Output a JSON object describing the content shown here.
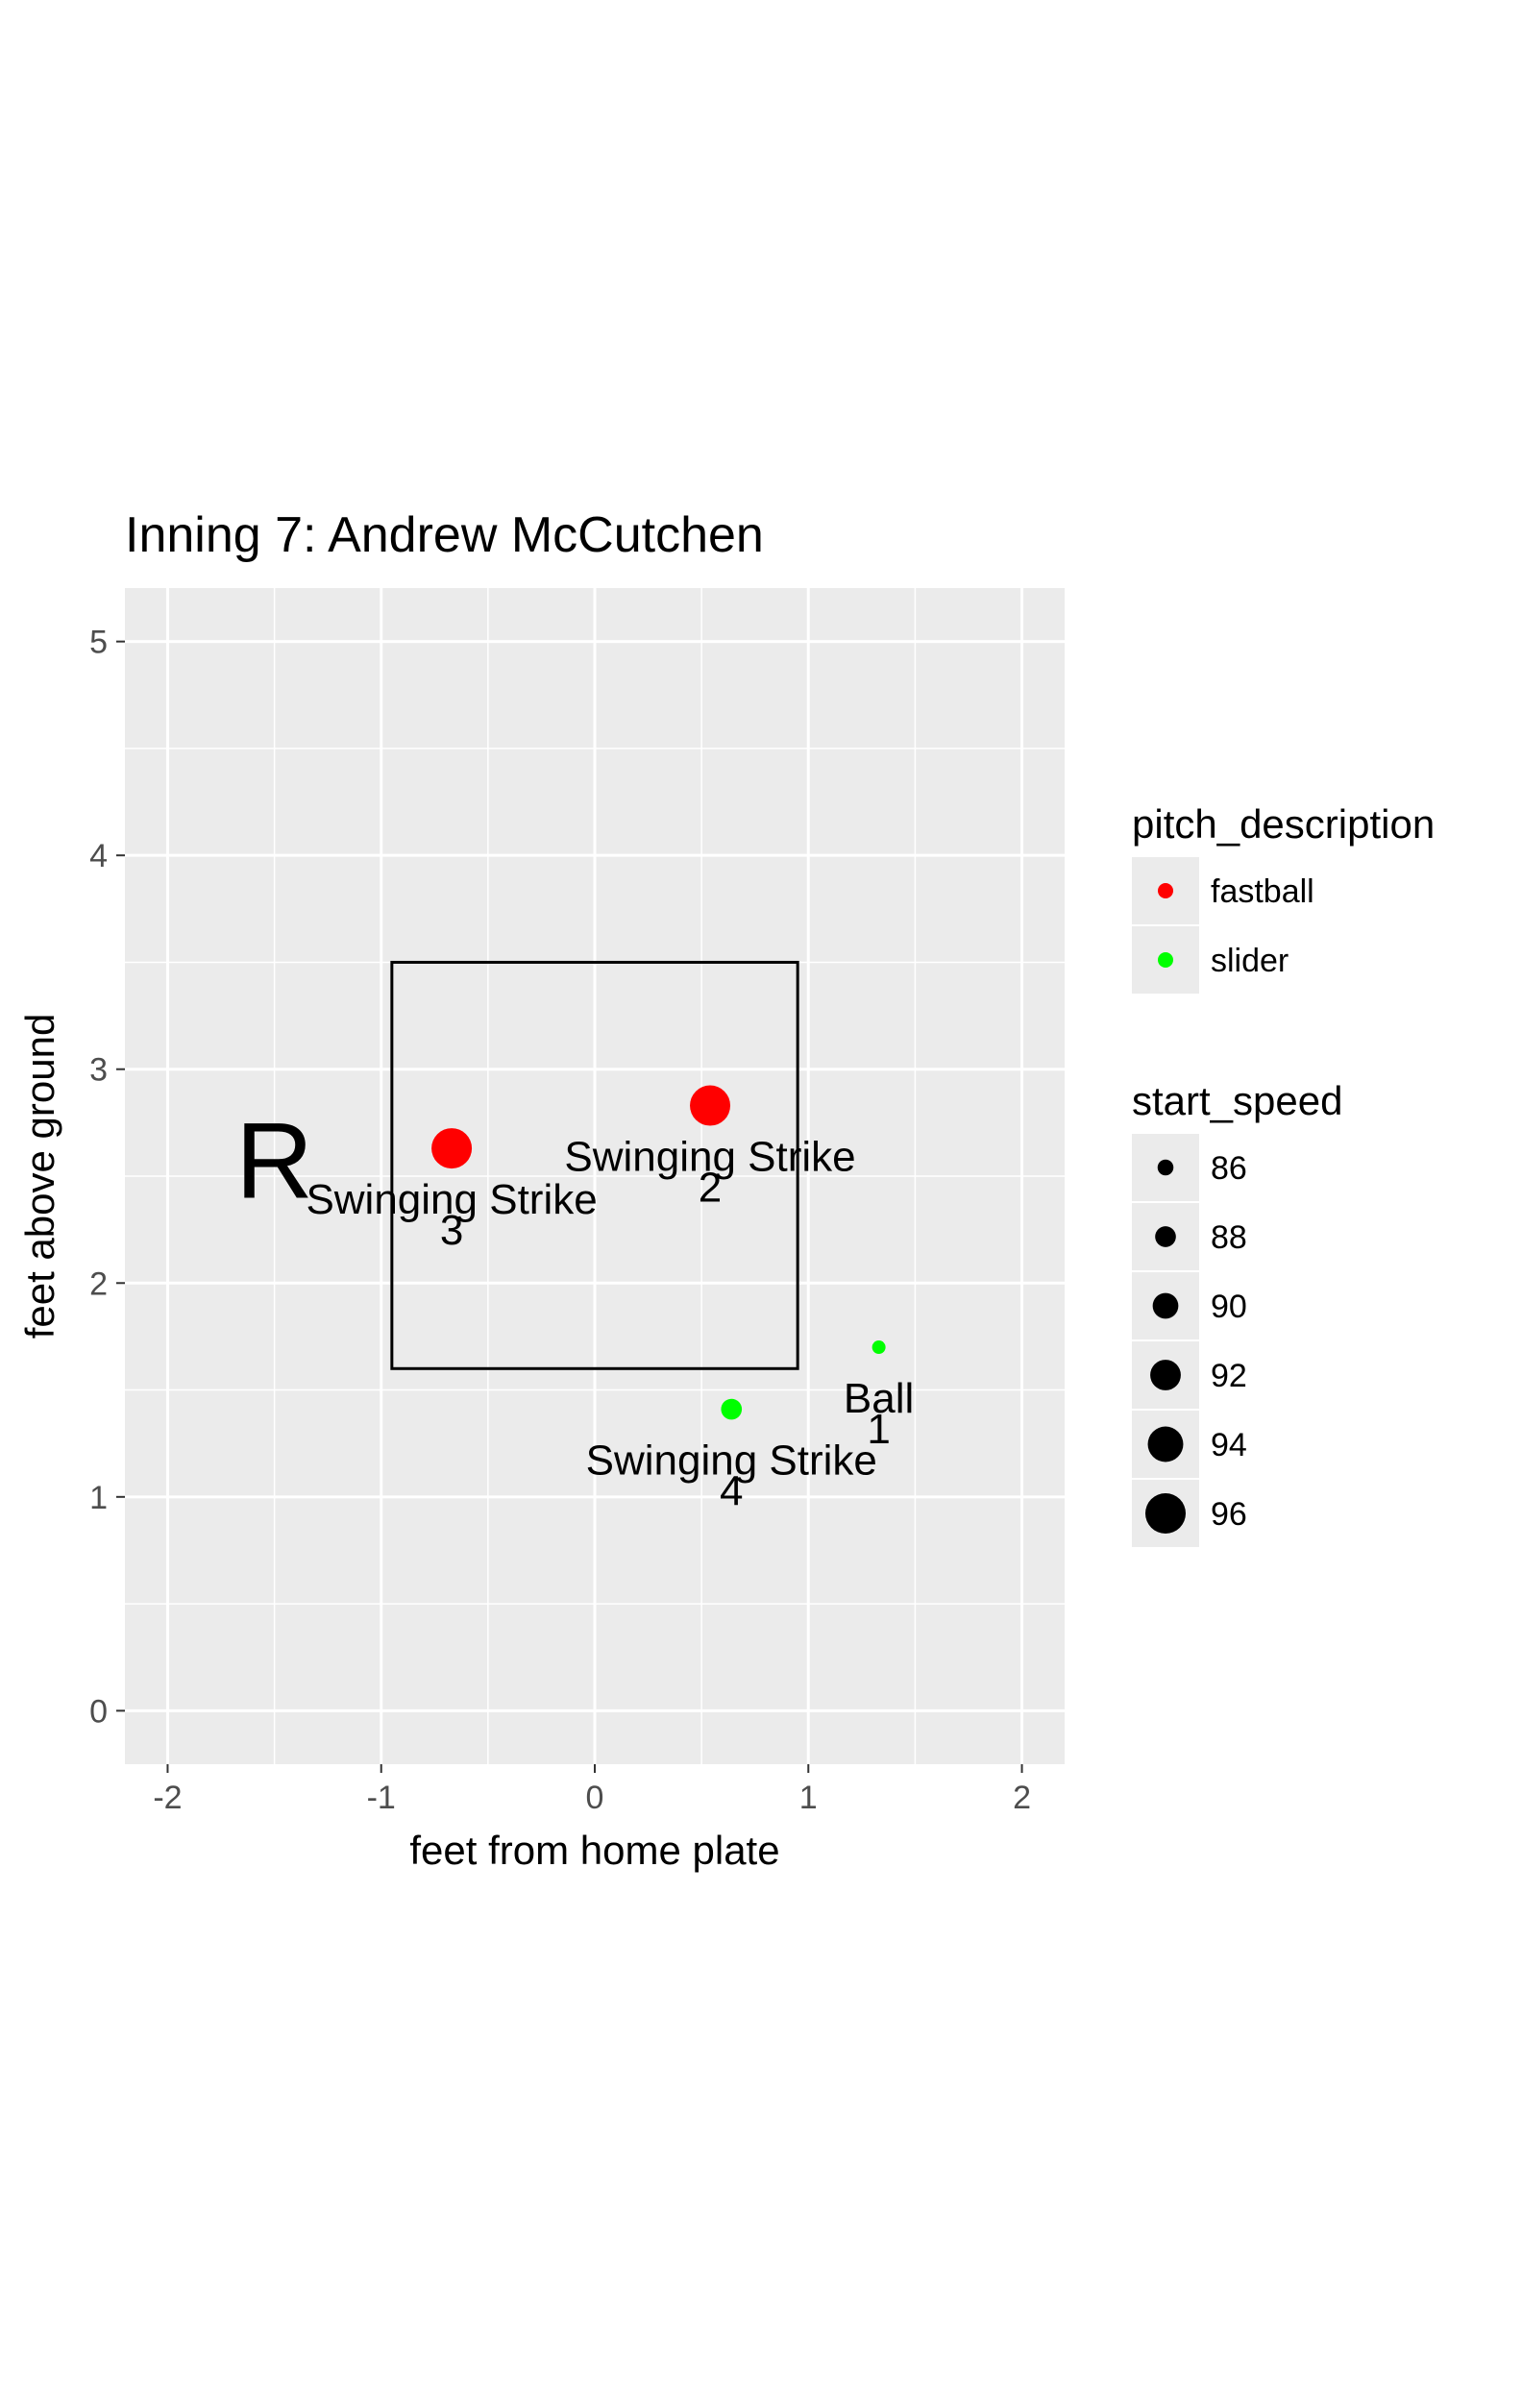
{
  "chart_data": {
    "type": "scatter",
    "title": "Inning 7: Andrew McCutchen",
    "xlabel": "feet from home plate",
    "ylabel": "feet above ground",
    "xlim": [
      -2.2,
      2.2
    ],
    "ylim": [
      -0.25,
      5.25
    ],
    "x_ticks": [
      -2,
      -1,
      0,
      1,
      2
    ],
    "y_ticks": [
      0,
      1,
      2,
      3,
      4,
      5
    ],
    "grid": true,
    "strike_zone": {
      "x": [
        -0.95,
        0.95
      ],
      "y": [
        1.6,
        3.5
      ]
    },
    "batter_side": {
      "text": "R",
      "x": -1.5,
      "y": 2.4
    },
    "points": [
      {
        "x": 1.33,
        "y": 1.7,
        "speed": 85,
        "pitch": "slider",
        "description": "Ball",
        "number": "1"
      },
      {
        "x": 0.54,
        "y": 2.83,
        "speed": 96,
        "pitch": "fastball",
        "description": "Swinging Strike",
        "number": "2"
      },
      {
        "x": -0.67,
        "y": 2.63,
        "speed": 96,
        "pitch": "fastball",
        "description": "Swinging Strike",
        "number": "3"
      },
      {
        "x": 0.64,
        "y": 1.41,
        "speed": 88,
        "pitch": "slider",
        "description": "Swinging Strike",
        "number": "4"
      }
    ],
    "legend": {
      "placement": "right",
      "color_title": "pitch_description",
      "color_items": [
        {
          "label": "fastball",
          "color": "#ff0000"
        },
        {
          "label": "slider",
          "color": "#00ff00"
        }
      ],
      "size_title": "start_speed",
      "size_items": [
        86,
        88,
        90,
        92,
        94,
        96
      ]
    },
    "colors": {
      "fastball": "#ff0000",
      "slider": "#00ff00",
      "panel": "#ebebeb",
      "grid": "#ffffff",
      "zone": "#000000"
    }
  }
}
